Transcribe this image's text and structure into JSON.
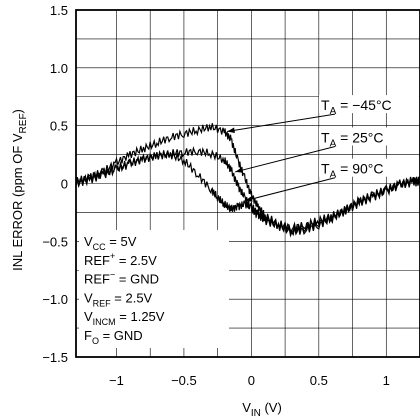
{
  "chart_data": {
    "type": "line",
    "xlabel": "V",
    "xlabel_sub": "IN",
    "xlabel_unit": " (V)",
    "ylabel": "INL ERROR (ppm OF V",
    "ylabel_sub": "REF",
    "ylabel_end": ")",
    "xlim": [
      -1.3,
      1.25
    ],
    "ylim": [
      -1.5,
      1.5
    ],
    "grid": true,
    "x_ticks": [
      {
        "value": -1,
        "label": "−1"
      },
      {
        "value": -0.5,
        "label": "−0.5"
      },
      {
        "value": 0,
        "label": "0"
      },
      {
        "value": 0.5,
        "label": "0.5"
      },
      {
        "value": 1,
        "label": "1"
      }
    ],
    "y_ticks": [
      {
        "value": 1.5,
        "label": "1.5"
      },
      {
        "value": 1.0,
        "label": "1.0"
      },
      {
        "value": 0.5,
        "label": "0.5"
      },
      {
        "value": 0,
        "label": "0"
      },
      {
        "value": -0.5,
        "label": "−0.5"
      },
      {
        "value": -1.0,
        "label": "−1.0"
      },
      {
        "value": -1.5,
        "label": "−1.5"
      }
    ],
    "series": [
      {
        "label": "T_A = −45°C",
        "color": "#000000",
        "x": [
          -1.3,
          -1.2,
          -1.1,
          -1.0,
          -0.9,
          -0.8,
          -0.7,
          -0.6,
          -0.5,
          -0.4,
          -0.3,
          -0.2,
          -0.15,
          -0.1,
          -0.05,
          0,
          0.05,
          0.1,
          0.2,
          0.3,
          0.4,
          0.5,
          0.6,
          0.7,
          0.8,
          0.9,
          1.0,
          1.1,
          1.2,
          1.25
        ],
        "y": [
          0.0,
          0.05,
          0.1,
          0.18,
          0.25,
          0.3,
          0.35,
          0.4,
          0.43,
          0.46,
          0.49,
          0.45,
          0.38,
          0.2,
          0.05,
          -0.1,
          -0.2,
          -0.28,
          -0.35,
          -0.38,
          -0.36,
          -0.32,
          -0.28,
          -0.22,
          -0.15,
          -0.1,
          -0.05,
          0.0,
          0.03,
          0.03
        ]
      },
      {
        "label": "T_A = 25°C",
        "color": "#000000",
        "x": [
          -1.3,
          -1.2,
          -1.1,
          -1.0,
          -0.9,
          -0.8,
          -0.7,
          -0.6,
          -0.5,
          -0.4,
          -0.3,
          -0.2,
          -0.15,
          -0.1,
          -0.05,
          0,
          0.05,
          0.1,
          0.2,
          0.3,
          0.4,
          0.5,
          0.6,
          0.7,
          0.8,
          0.9,
          1.0,
          1.1,
          1.2,
          1.25
        ],
        "y": [
          0.0,
          0.03,
          0.07,
          0.12,
          0.17,
          0.21,
          0.24,
          0.26,
          0.27,
          0.28,
          0.26,
          0.2,
          0.12,
          -0.02,
          -0.12,
          -0.22,
          -0.28,
          -0.3,
          -0.36,
          -0.4,
          -0.38,
          -0.34,
          -0.29,
          -0.23,
          -0.16,
          -0.11,
          -0.06,
          -0.01,
          0.02,
          0.02
        ]
      },
      {
        "label": "T_A = 90°C",
        "color": "#000000",
        "x": [
          -1.3,
          -1.2,
          -1.1,
          -1.0,
          -0.9,
          -0.8,
          -0.7,
          -0.6,
          -0.5,
          -0.4,
          -0.3,
          -0.25,
          -0.2,
          -0.15,
          -0.1,
          -0.05,
          0,
          0.05,
          0.1,
          0.2,
          0.3,
          0.4,
          0.5,
          0.6,
          0.7,
          0.8,
          0.9,
          1.0,
          1.1,
          1.2,
          1.25
        ],
        "y": [
          0.02,
          0.05,
          0.09,
          0.13,
          0.18,
          0.21,
          0.24,
          0.25,
          0.2,
          0.08,
          -0.05,
          -0.12,
          -0.18,
          -0.22,
          -0.2,
          -0.18,
          -0.2,
          -0.26,
          -0.32,
          -0.37,
          -0.42,
          -0.4,
          -0.36,
          -0.3,
          -0.24,
          -0.17,
          -0.12,
          -0.07,
          -0.02,
          0.01,
          0.01
        ]
      }
    ],
    "annotations": [
      {
        "id": "m45",
        "pre": "T",
        "sub": "A",
        "post": " = −45°C",
        "line_from": [
          0.62,
          0.6
        ],
        "line_to": [
          -0.18,
          0.45
        ]
      },
      {
        "id": "p25",
        "pre": "T",
        "sub": "A",
        "post": " = 25°C",
        "line_from": [
          0.62,
          0.32
        ],
        "line_to": [
          -0.12,
          0.1
        ]
      },
      {
        "id": "p90",
        "pre": "T",
        "sub": "A",
        "post": " = 90°C",
        "line_from": [
          0.62,
          0.05
        ],
        "line_to": [
          -0.05,
          -0.15
        ]
      }
    ],
    "conditions": [
      {
        "pre": "V",
        "sub": "CC",
        "post": " = 5V"
      },
      {
        "pre": "REF",
        "sup": "+",
        "post": " = 2.5V"
      },
      {
        "pre": "REF",
        "sup": "−",
        "post": " = GND"
      },
      {
        "pre": "V",
        "sub": "REF",
        "post": " = 2.5V"
      },
      {
        "pre": "V",
        "sub": "INCM",
        "post": " = 1.25V"
      },
      {
        "pre": "F",
        "sub": "O",
        "post": " = GND"
      }
    ]
  }
}
